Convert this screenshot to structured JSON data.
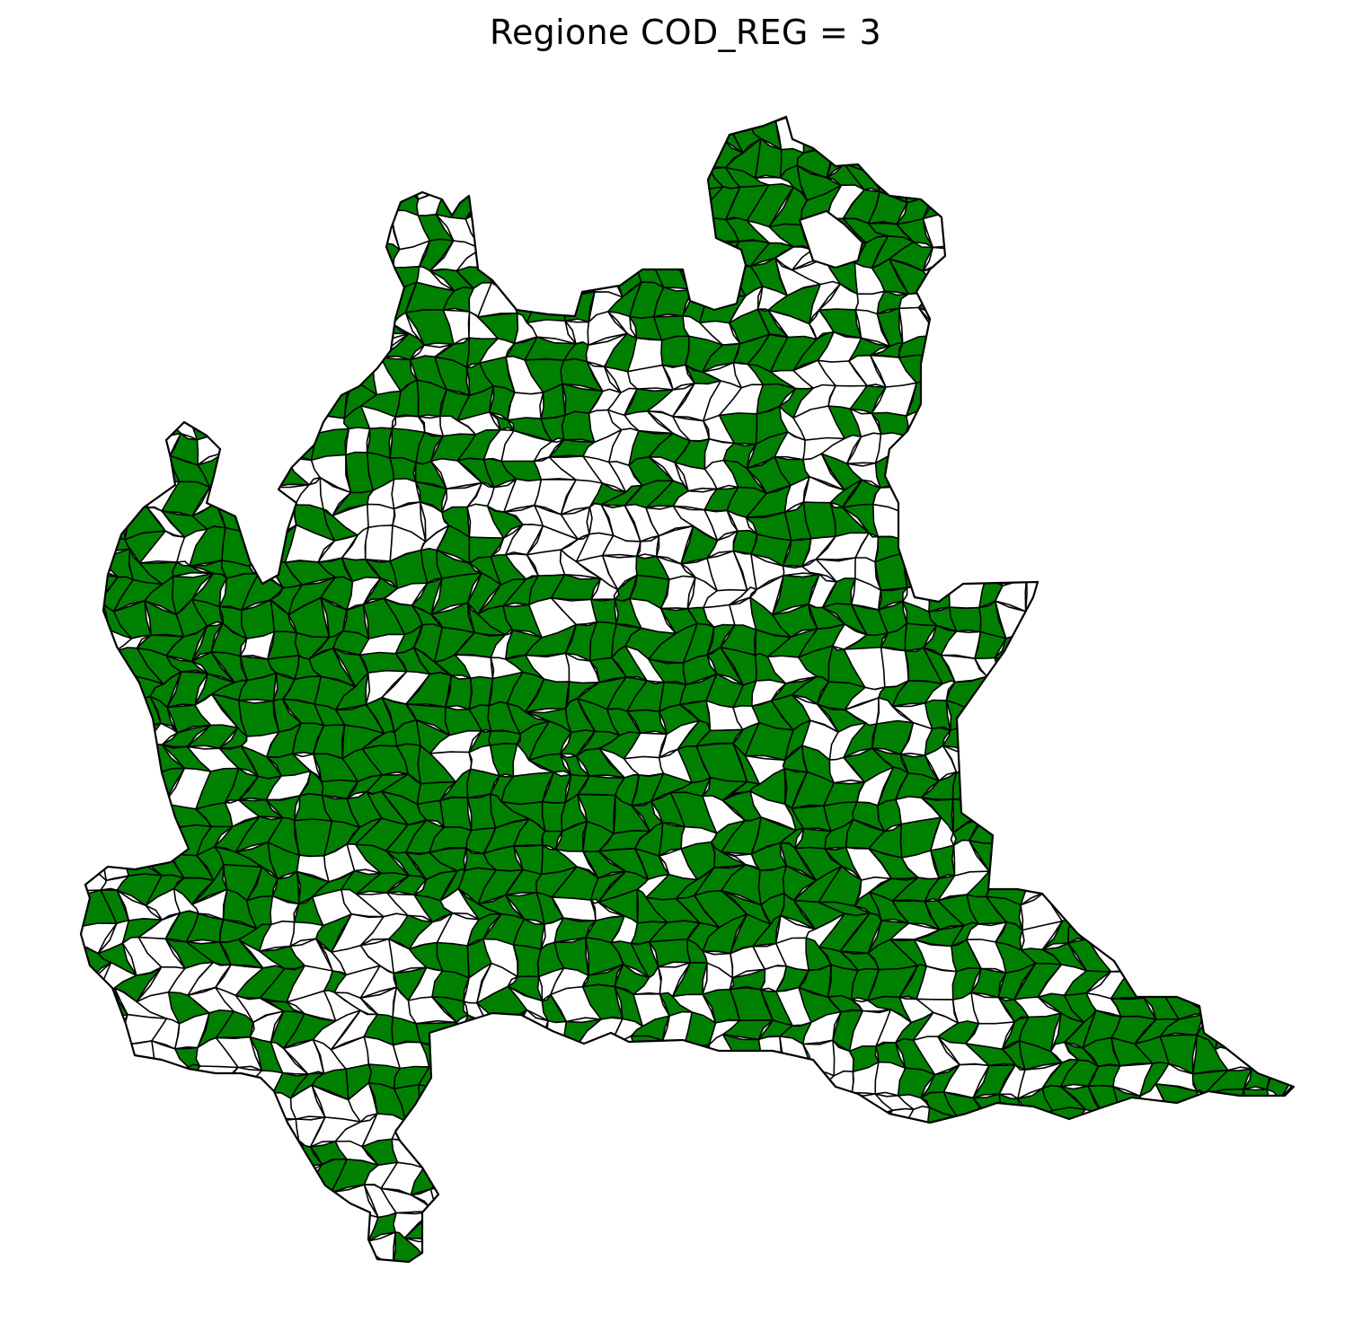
{
  "title": "Regione COD_REG = 3",
  "colors": {
    "highlight_fill": "#008000",
    "other_fill": "#ffffff",
    "border": "#000000",
    "background": "#ffffff"
  },
  "map": {
    "region_code": 3,
    "fill_categories": [
      "highlighted",
      "not-highlighted"
    ],
    "axes_visible": false
  }
}
